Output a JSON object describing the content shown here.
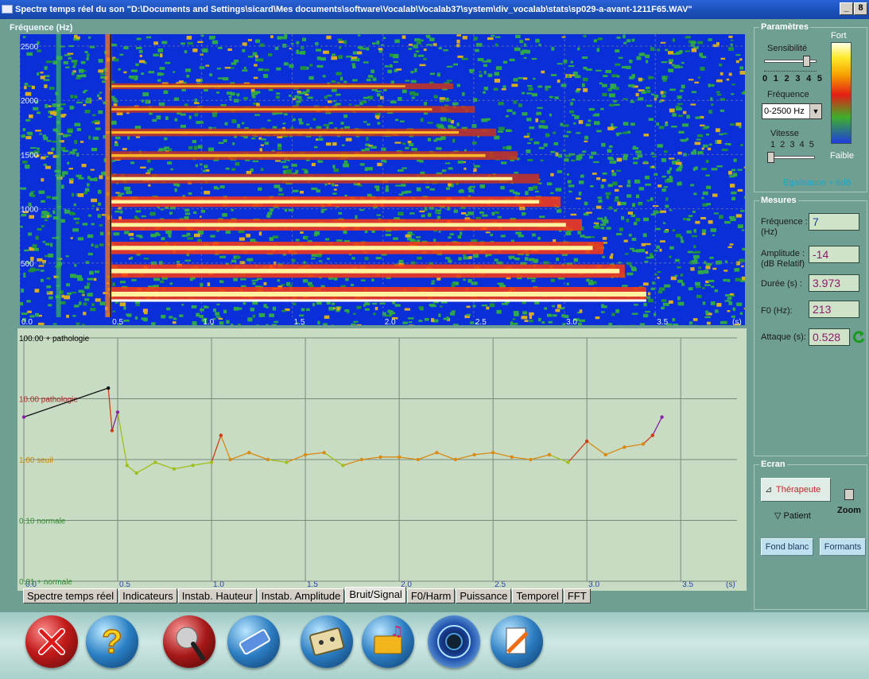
{
  "window": {
    "title": "Spectre temps réel du son \"D:\\Documents and Settings\\sicard\\Mes documents\\software\\Vocalab\\Vocalab37\\system\\div_vocalab\\stats\\sp029-a-avant-1211F65.WAV\"",
    "min_label": "_",
    "max_label": "8"
  },
  "spectrogram": {
    "ylabel": "Fréquence (Hz)",
    "y_ticks": [
      "2500",
      "2000",
      "1500",
      "1000",
      "500"
    ],
    "x_ticks": [
      "0.0",
      "0.5",
      "1.0",
      "1.5",
      "2.0",
      "2.5",
      "3.0",
      "3.5"
    ],
    "x_unit": "(s)",
    "harmonic_frequencies_hz": [
      213,
      426,
      639,
      852,
      1065,
      1278,
      1491,
      1704,
      1917,
      2130
    ],
    "voicing_start_s": 0.5,
    "voicing_end_s": 3.45
  },
  "chart_data": {
    "type": "scatter",
    "title": "",
    "xlabel": "",
    "x_unit": "(s)",
    "ylabel": "",
    "y_scale": "log",
    "ylim": [
      0.01,
      100
    ],
    "xlim": [
      0.0,
      3.8
    ],
    "x_ticks": [
      "0.0",
      "0.5",
      "1.0",
      "1.5",
      "2.0",
      "2.5",
      "3.0",
      "3.5"
    ],
    "threshold_labels": [
      {
        "value": 100,
        "label": "100.00 + pathologie",
        "color": "#000000"
      },
      {
        "value": 10,
        "label": "10.00 pathologie",
        "color": "#b42323"
      },
      {
        "value": 1,
        "label": "1.00 seuil",
        "color": "#c58900"
      },
      {
        "value": 0.1,
        "label": "0.10 normale",
        "color": "#2f8f2f"
      },
      {
        "value": 0.01,
        "label": "0.01 + normale",
        "color": "#2f8f2f"
      }
    ],
    "series_color_scale": "value",
    "x": [
      0.0,
      0.45,
      0.47,
      0.5,
      0.55,
      0.6,
      0.7,
      0.8,
      0.9,
      1.0,
      1.05,
      1.1,
      1.2,
      1.3,
      1.4,
      1.5,
      1.6,
      1.7,
      1.8,
      1.9,
      2.0,
      2.1,
      2.2,
      2.3,
      2.4,
      2.5,
      2.6,
      2.7,
      2.8,
      2.9,
      3.0,
      3.1,
      3.2,
      3.3,
      3.35,
      3.4
    ],
    "y": [
      5.0,
      15.0,
      3.0,
      6.0,
      0.8,
      0.6,
      0.9,
      0.7,
      0.8,
      0.9,
      2.5,
      1.0,
      1.3,
      1.0,
      0.9,
      1.2,
      1.3,
      0.8,
      1.0,
      1.1,
      1.1,
      1.0,
      1.3,
      1.0,
      1.2,
      1.3,
      1.1,
      1.0,
      1.2,
      0.9,
      2.0,
      1.2,
      1.6,
      1.8,
      2.5,
      5.0
    ]
  },
  "tabs": [
    "Spectre temps réel",
    "Indicateurs",
    "Instab. Hauteur",
    "Instab. Amplitude",
    "Bruit/Signal",
    "F0/Harm",
    "Puissance",
    "Temporel",
    "FFT"
  ],
  "active_tab": "Bruit/Signal",
  "parametres": {
    "title": "Paramètres",
    "sensibilite_label": "Sensibilité",
    "sensibilite_ticks": "0 1 2 3 4 5",
    "sensibilite_value": 4,
    "frequence_label": "Fréquence",
    "frequence_value": "0-2500 Hz",
    "vitesse_label": "Vitesse",
    "vitesse_ticks": "1 2 3 4 5",
    "vitesse_value": 1,
    "scale_top": "Fort",
    "scale_bottom": "Faible",
    "egalisation": "Egalisation + 6dB"
  },
  "mesures": {
    "title": "Mesures",
    "frequence_label": "Fréquence :",
    "frequence_unit": "(Hz)",
    "frequence_value": "7",
    "amplitude_label": "Amplitude :",
    "amplitude_unit": "(dB Relatif)",
    "amplitude_value": "-14",
    "duree_label": "Durée (s) :",
    "duree_value": "3.973",
    "f0_label": "F0 (Hz):",
    "f0_value": "213",
    "attaque_label": "Attaque (s):",
    "attaque_value": "0.528"
  },
  "ecran": {
    "title": "Ecran",
    "therapeute": "Thérapeute",
    "patient": "Patient",
    "zoom": "Zoom",
    "fond_blanc": "Fond blanc",
    "formants": "Formants"
  },
  "toolbar": {
    "icons": [
      "close-icon",
      "help-icon",
      "microphone-icon",
      "eraser-icon",
      "cassette-icon",
      "folder-music-icon",
      "speaker-icon",
      "document-edit-icon"
    ]
  },
  "colors": {
    "panel_bg": "#6f9f92",
    "spectrogram_bg": "#0a2fd8",
    "chart_bg": "#c8dcc4"
  }
}
